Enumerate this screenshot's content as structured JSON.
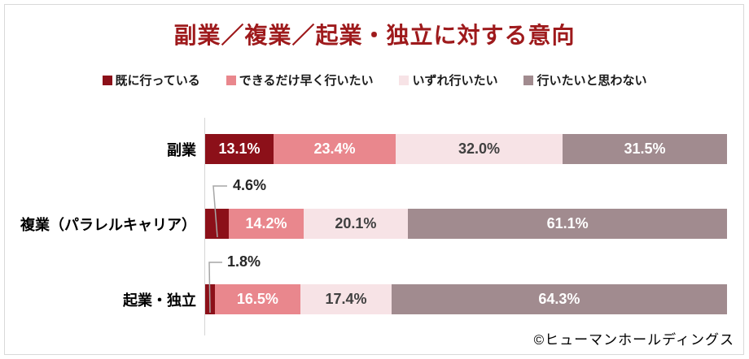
{
  "chart_data": {
    "type": "bar",
    "variant": "horizontal-stacked",
    "title": "副業／複業／起業・独立に対する意向",
    "categories": [
      "副業",
      "複業（パラレルキャリア）",
      "起業・独立"
    ],
    "series": [
      {
        "name": "既に行っている",
        "color": "#8c1019",
        "label_color": "#ffffff",
        "values": [
          13.1,
          4.6,
          1.8
        ]
      },
      {
        "name": "できるだけ早く行いたい",
        "color": "#e9878d",
        "label_color": "#ffffff",
        "values": [
          23.4,
          14.2,
          16.5
        ]
      },
      {
        "name": "いずれ行いたい",
        "color": "#f7e3e6",
        "label_color": "#404040",
        "values": [
          32.0,
          20.1,
          17.4
        ]
      },
      {
        "name": "行いたいと思わない",
        "color": "#a18b8f",
        "label_color": "#ffffff",
        "values": [
          31.5,
          61.1,
          64.3
        ]
      }
    ],
    "value_suffix": "%",
    "xlim": [
      0,
      100
    ],
    "grid": false,
    "legend_position": "top",
    "callouts": [
      {
        "category_index": 1,
        "series_index": 0,
        "label": "4.6%"
      },
      {
        "category_index": 2,
        "series_index": 0,
        "label": "1.8%"
      }
    ],
    "segment_labels": [
      [
        "13.1%",
        "23.4%",
        "32.0%",
        "31.5%"
      ],
      [
        null,
        "14.2%",
        "20.1%",
        "61.1%"
      ],
      [
        null,
        "16.5%",
        "17.4%",
        "64.3%"
      ]
    ],
    "credit": "©ヒューマンホールディングス"
  },
  "style": {
    "title_color": "#9e1a1c",
    "axis_line_color": "#d6d6d6",
    "leader_line_color": "#a6a6a6",
    "border_color": "#d9d9d9"
  }
}
